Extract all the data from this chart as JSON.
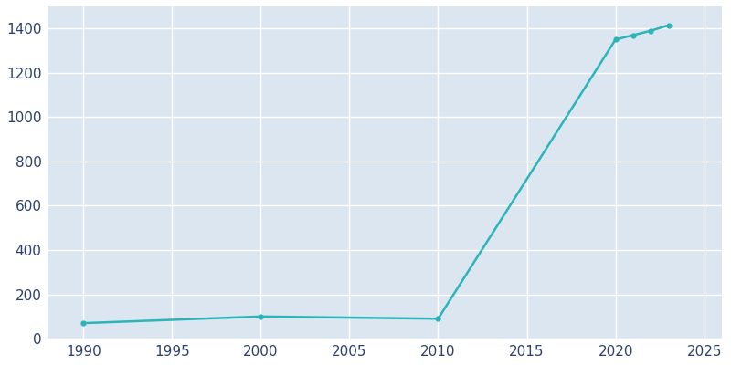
{
  "years": [
    1990,
    2000,
    2010,
    2020,
    2021,
    2022,
    2023
  ],
  "population": [
    70,
    100,
    90,
    1350,
    1370,
    1390,
    1415
  ],
  "line_color": "#2bb5b8",
  "marker": "o",
  "marker_size": 3.5,
  "line_width": 1.8,
  "plot_bg_color": "#dce6f0",
  "fig_bg_color": "#ffffff",
  "xlim": [
    1988,
    2026
  ],
  "ylim": [
    0,
    1500
  ],
  "xticks": [
    1990,
    1995,
    2000,
    2005,
    2010,
    2015,
    2020,
    2025
  ],
  "yticks": [
    0,
    200,
    400,
    600,
    800,
    1000,
    1200,
    1400
  ],
  "grid_color": "#ffffff",
  "tick_color": "#2d3f6c",
  "tick_fontsize": 11,
  "grid_linewidth": 1.0
}
